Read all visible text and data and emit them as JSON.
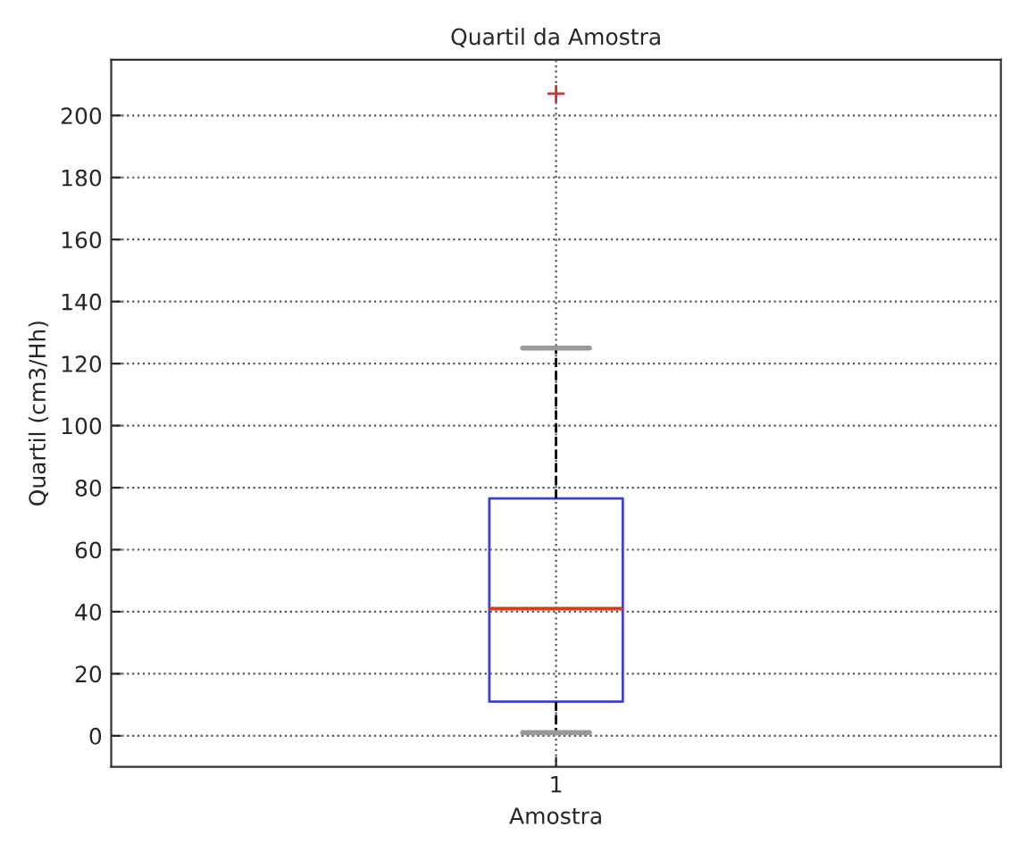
{
  "chart_data": {
    "type": "box",
    "title": "Quartil da Amostra",
    "xlabel": "Amostra",
    "ylabel": "Quartil (cm3/Hh)",
    "categories": [
      "1"
    ],
    "boxes": [
      {
        "low": 1,
        "q1": 11,
        "median": 41,
        "q3": 76.5,
        "high": 125,
        "outliers": [
          207
        ]
      }
    ],
    "color": "#4040d0",
    "ylim": [
      -10,
      218
    ],
    "yticks": [
      0,
      20,
      40,
      60,
      80,
      100,
      120,
      140,
      160,
      180,
      200
    ],
    "grid": true,
    "line_style": "dotted"
  }
}
